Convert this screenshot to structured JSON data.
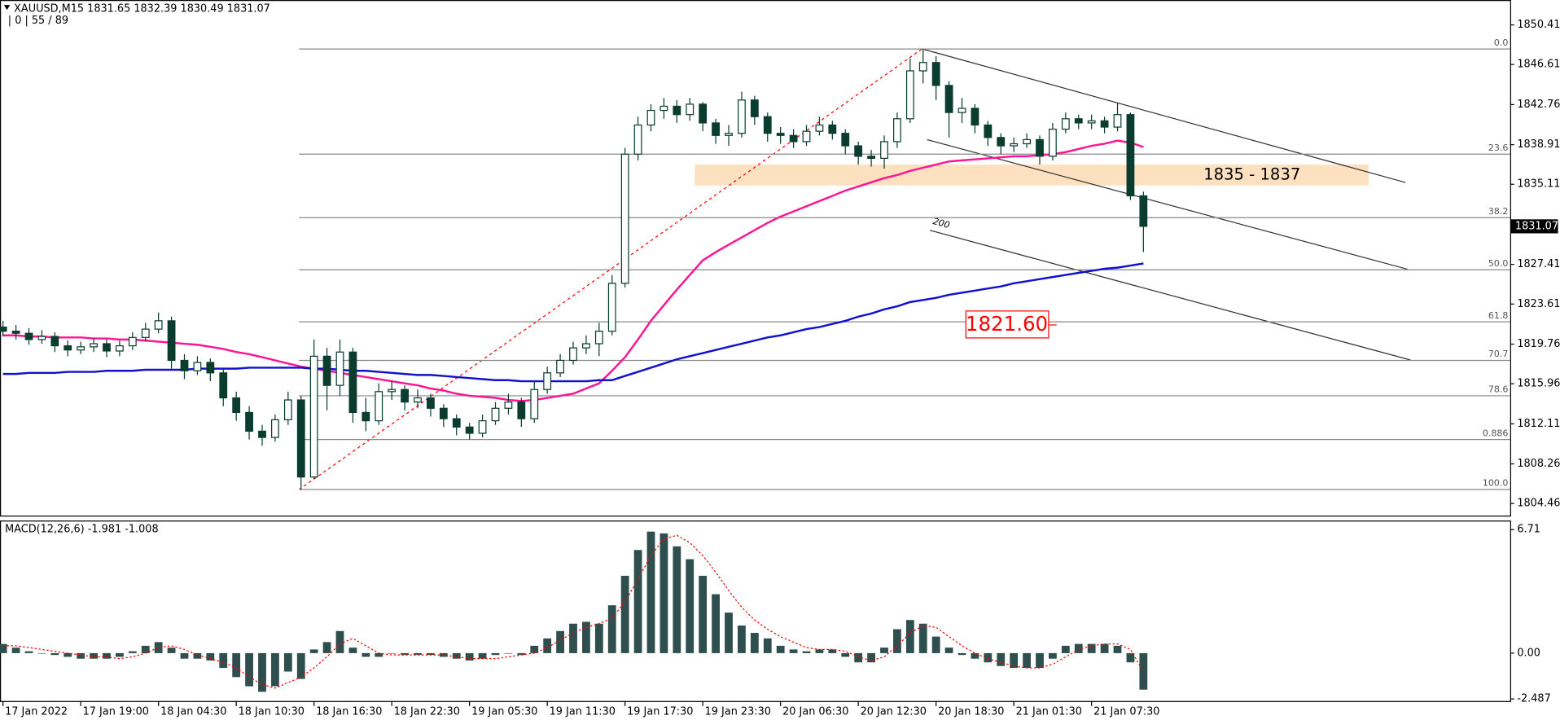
{
  "chart_data": [
    {
      "type": "candlestick",
      "title": "XAUUSD,M15 1831.65 1832.39 1830.49 1831.07",
      "subtitle": "| 0 | 55 / 89",
      "xlim": [
        -0.23,
        116.3
      ],
      "xticks": [
        {
          "value": 0,
          "label": "17 Jan 2022"
        },
        {
          "value": 6,
          "label": "17 Jan 19:00"
        },
        {
          "value": 12,
          "label": "18 Jan 04:30"
        },
        {
          "value": 18,
          "label": "18 Jan 10:30"
        },
        {
          "value": 24,
          "label": "18 Jan 16:30"
        },
        {
          "value": 30,
          "label": "18 Jan 22:30"
        },
        {
          "value": 36,
          "label": "19 Jan 05:30"
        },
        {
          "value": 42,
          "label": "19 Jan 11:30"
        },
        {
          "value": 48,
          "label": "19 Jan 17:30"
        },
        {
          "value": 54,
          "label": "19 Jan 23:30"
        },
        {
          "value": 60,
          "label": "20 Jan 06:30"
        },
        {
          "value": 66,
          "label": "20 Jan 12:30"
        },
        {
          "value": 72,
          "label": "20 Jan 18:30"
        },
        {
          "value": 78,
          "label": "21 Jan 01:30"
        },
        {
          "value": 84,
          "label": "21 Jan 07:30"
        }
      ],
      "ylim": [
        1803.3,
        1852.8
      ],
      "yticks": [
        1850.41,
        1846.61,
        1842.76,
        1838.91,
        1835.11,
        1827.41,
        1823.61,
        1819.76,
        1815.96,
        1812.11,
        1808.26,
        1804.46
      ],
      "last_price": 1831.07,
      "color": "#0b3d2e",
      "open": [
        1821.4,
        1821.0,
        1820.8,
        1820.2,
        1820.5,
        1819.6,
        1819.2,
        1819.5,
        1819.8,
        1819.1,
        1819.6,
        1820.4,
        1821.2,
        1822.0,
        1818.2,
        1817.2,
        1818.0,
        1817.0,
        1814.6,
        1813.2,
        1811.4,
        1810.8,
        1812.5,
        1814.4,
        1807.0,
        1818.6,
        1815.8,
        1819.0,
        1813.2,
        1812.4,
        1815.2,
        1815.4,
        1814.2,
        1814.6,
        1813.6,
        1812.6,
        1811.8,
        1811.2,
        1812.4,
        1813.6,
        1814.2,
        1812.6,
        1815.4,
        1817.0,
        1818.2,
        1819.4,
        1819.8,
        1821.0,
        1825.6,
        1838.0,
        1840.8,
        1842.2,
        1842.6,
        1841.8,
        1842.8,
        1841.0,
        1839.8,
        1840.0,
        1843.2,
        1841.6,
        1840.0,
        1839.8,
        1839.2,
        1840.2,
        1840.8,
        1840.0,
        1838.8,
        1837.8,
        1837.6,
        1839.2,
        1841.4,
        1846.0,
        1846.8,
        1844.6,
        1842.0,
        1842.4,
        1840.8,
        1839.6,
        1838.8,
        1839.0,
        1839.4,
        1837.8,
        1840.4,
        1841.4,
        1841.0,
        1841.2,
        1840.6,
        1841.8,
        1834.0
      ],
      "high": [
        1822.0,
        1821.6,
        1821.3,
        1821.1,
        1820.9,
        1820.1,
        1820.0,
        1820.3,
        1820.2,
        1820.1,
        1820.9,
        1821.8,
        1822.8,
        1822.4,
        1818.8,
        1818.6,
        1818.4,
        1817.4,
        1815.2,
        1813.8,
        1812.0,
        1813.0,
        1815.2,
        1814.8,
        1820.2,
        1819.4,
        1820.2,
        1819.4,
        1814.6,
        1816.0,
        1816.2,
        1815.8,
        1815.4,
        1815.0,
        1814.0,
        1813.0,
        1812.2,
        1813.0,
        1814.2,
        1815.0,
        1814.6,
        1816.2,
        1817.6,
        1818.8,
        1820.0,
        1820.6,
        1821.8,
        1826.4,
        1838.6,
        1841.6,
        1842.8,
        1843.4,
        1843.2,
        1843.4,
        1843.0,
        1841.4,
        1840.8,
        1844.0,
        1843.6,
        1842.0,
        1840.6,
        1840.4,
        1840.8,
        1841.6,
        1841.2,
        1840.4,
        1839.2,
        1838.4,
        1839.8,
        1842.0,
        1847.2,
        1848.1,
        1847.4,
        1845.0,
        1843.4,
        1842.8,
        1841.2,
        1840.0,
        1839.6,
        1840.0,
        1839.8,
        1841.0,
        1842.0,
        1841.8,
        1841.8,
        1841.6,
        1842.9,
        1842.0,
        1834.4
      ],
      "low": [
        1820.5,
        1820.2,
        1819.7,
        1819.8,
        1819.0,
        1818.6,
        1818.8,
        1819.0,
        1818.5,
        1818.6,
        1819.2,
        1820.0,
        1820.8,
        1817.4,
        1816.4,
        1816.8,
        1816.2,
        1813.8,
        1812.4,
        1810.6,
        1810.0,
        1810.4,
        1812.0,
        1805.8,
        1806.8,
        1813.4,
        1814.8,
        1812.2,
        1811.4,
        1812.0,
        1814.4,
        1813.4,
        1813.6,
        1812.8,
        1811.8,
        1811.0,
        1810.6,
        1810.8,
        1812.0,
        1813.0,
        1811.8,
        1812.2,
        1815.0,
        1816.6,
        1817.8,
        1818.8,
        1818.6,
        1820.6,
        1825.2,
        1837.4,
        1840.2,
        1841.4,
        1841.0,
        1841.2,
        1840.2,
        1839.0,
        1838.8,
        1839.6,
        1840.8,
        1839.2,
        1839.0,
        1838.6,
        1838.8,
        1839.8,
        1839.4,
        1838.0,
        1837.0,
        1836.8,
        1836.6,
        1838.6,
        1841.0,
        1844.8,
        1843.2,
        1839.6,
        1841.0,
        1840.0,
        1838.8,
        1838.0,
        1838.2,
        1838.6,
        1837.0,
        1837.4,
        1840.0,
        1840.4,
        1840.4,
        1840.0,
        1840.2,
        1833.6,
        1828.6
      ],
      "close": [
        1821.0,
        1820.8,
        1820.2,
        1820.5,
        1819.6,
        1819.2,
        1819.5,
        1819.8,
        1819.1,
        1819.6,
        1820.4,
        1821.2,
        1822.0,
        1818.2,
        1817.2,
        1818.0,
        1817.0,
        1814.6,
        1813.2,
        1811.4,
        1810.8,
        1812.5,
        1814.4,
        1807.0,
        1818.6,
        1815.8,
        1819.0,
        1813.2,
        1812.4,
        1815.2,
        1815.4,
        1814.2,
        1814.6,
        1813.6,
        1812.6,
        1811.8,
        1811.2,
        1812.4,
        1813.6,
        1814.2,
        1812.6,
        1815.4,
        1817.0,
        1818.2,
        1819.4,
        1819.8,
        1821.0,
        1825.6,
        1838.0,
        1840.8,
        1842.2,
        1842.6,
        1841.8,
        1842.8,
        1841.0,
        1839.8,
        1840.0,
        1843.2,
        1841.6,
        1840.0,
        1839.8,
        1839.2,
        1840.2,
        1840.8,
        1840.0,
        1838.8,
        1837.8,
        1837.6,
        1839.2,
        1841.4,
        1846.0,
        1846.8,
        1844.6,
        1842.0,
        1842.4,
        1840.8,
        1839.6,
        1838.8,
        1839.0,
        1839.4,
        1837.8,
        1840.4,
        1841.4,
        1841.0,
        1841.2,
        1840.6,
        1841.8,
        1834.0,
        1831.07
      ],
      "lines": [
        {
          "color": "#ff1493",
          "values": [
            1820.6,
            1820.6,
            1820.5,
            1820.5,
            1820.4,
            1820.4,
            1820.4,
            1820.3,
            1820.3,
            1820.2,
            1820.2,
            1820.1,
            1820.0,
            1819.9,
            1819.8,
            1819.7,
            1819.5,
            1819.3,
            1819.0,
            1818.8,
            1818.5,
            1818.2,
            1817.9,
            1817.6,
            1817.4,
            1817.2,
            1817.0,
            1816.8,
            1816.6,
            1816.4,
            1816.2,
            1816.0,
            1815.8,
            1815.5,
            1815.3,
            1815.0,
            1814.8,
            1814.7,
            1814.6,
            1814.4,
            1814.3,
            1814.4,
            1814.6,
            1814.8,
            1815.0,
            1815.5,
            1816.0,
            1817.2,
            1818.5,
            1820.2,
            1822.0,
            1823.5,
            1825.0,
            1826.4,
            1827.8,
            1828.6,
            1829.3,
            1830.0,
            1830.7,
            1831.4,
            1832.0,
            1832.5,
            1833.0,
            1833.5,
            1834.0,
            1834.5,
            1834.9,
            1835.3,
            1835.7,
            1836.0,
            1836.4,
            1836.7,
            1837.0,
            1837.3,
            1837.4,
            1837.5,
            1837.6,
            1837.7,
            1837.8,
            1837.8,
            1837.9,
            1838.0,
            1838.2,
            1838.5,
            1838.8,
            1839.0,
            1839.3,
            1839.1,
            1838.7
          ]
        },
        {
          "color": "#1010d0",
          "values": [
            1816.9,
            1816.9,
            1817.0,
            1817.0,
            1817.0,
            1817.1,
            1817.1,
            1817.1,
            1817.2,
            1817.2,
            1817.2,
            1817.3,
            1817.3,
            1817.3,
            1817.3,
            1817.4,
            1817.4,
            1817.4,
            1817.4,
            1817.5,
            1817.5,
            1817.5,
            1817.5,
            1817.5,
            1817.4,
            1817.4,
            1817.3,
            1817.2,
            1817.2,
            1817.1,
            1817.0,
            1816.9,
            1816.8,
            1816.8,
            1816.7,
            1816.6,
            1816.5,
            1816.4,
            1816.3,
            1816.3,
            1816.2,
            1816.2,
            1816.2,
            1816.2,
            1816.2,
            1816.2,
            1816.3,
            1816.3,
            1816.7,
            1817.1,
            1817.5,
            1817.9,
            1818.3,
            1818.6,
            1818.9,
            1819.2,
            1819.5,
            1819.8,
            1820.1,
            1820.4,
            1820.6,
            1820.9,
            1821.2,
            1821.4,
            1821.7,
            1822.0,
            1822.4,
            1822.7,
            1823.1,
            1823.4,
            1823.8,
            1824.0,
            1824.2,
            1824.5,
            1824.7,
            1824.9,
            1825.1,
            1825.3,
            1825.6,
            1825.8,
            1826.0,
            1826.2,
            1826.4,
            1826.6,
            1826.8,
            1827.0,
            1827.1,
            1827.3,
            1827.5
          ]
        }
      ],
      "fib_levels": [
        {
          "label": "0.0",
          "value": 1848.1
        },
        {
          "label": "23.6",
          "value": 1838.0
        },
        {
          "label": "38.2",
          "value": 1831.9
        },
        {
          "label": "50.0",
          "value": 1826.9
        },
        {
          "label": "61.8",
          "value": 1821.9
        },
        {
          "label": "70.7",
          "value": 1818.2
        },
        {
          "label": "78.6",
          "value": 1814.8
        },
        {
          "label": "0.886",
          "value": 1810.6
        },
        {
          "label": "100.0",
          "value": 1805.8
        }
      ],
      "zone": {
        "label": "1835 - 1837",
        "low": 1835,
        "high": 1837,
        "color": "#fde0bf"
      },
      "price_label": {
        "label": "1821.60",
        "value": 1821.6,
        "color": "#ff0000"
      },
      "channel_label": "200"
    },
    {
      "type": "bar",
      "title": "MACD(12,26,6) -1.981 -1.008",
      "xlim": [
        -0.23,
        116.3
      ],
      "ylim": [
        -2.6,
        7.2
      ],
      "yticks": [
        6.71,
        {
          "value": 0,
          "label": "0.00"
        },
        -2.487
      ],
      "series": [
        {
          "color": "#2f4f4f",
          "values": [
            0.5,
            0.3,
            0.1,
            0.0,
            -0.1,
            -0.2,
            -0.3,
            -0.3,
            -0.3,
            -0.2,
            0.1,
            0.4,
            0.6,
            0.3,
            -0.3,
            -0.3,
            -0.4,
            -0.8,
            -1.3,
            -1.8,
            -2.1,
            -1.8,
            -1.0,
            -1.4,
            0.2,
            0.6,
            1.2,
            0.3,
            -0.2,
            -0.2,
            0.0,
            -0.1,
            -0.1,
            -0.1,
            -0.2,
            -0.3,
            -0.4,
            -0.3,
            -0.1,
            0.0,
            -0.1,
            0.4,
            0.8,
            1.2,
            1.6,
            1.7,
            1.6,
            2.6,
            4.2,
            5.6,
            6.6,
            6.5,
            5.8,
            5.1,
            4.2,
            3.2,
            2.2,
            1.5,
            1.1,
            0.8,
            0.4,
            0.2,
            0.1,
            0.2,
            0.2,
            -0.2,
            -0.5,
            -0.5,
            0.3,
            1.3,
            1.8,
            1.6,
            0.9,
            0.3,
            -0.1,
            -0.3,
            -0.5,
            -0.7,
            -0.8,
            -0.8,
            -0.8,
            -0.3,
            0.4,
            0.5,
            0.5,
            0.5,
            0.4,
            -0.5,
            -1.981
          ]
        },
        {
          "color": "#ff0000",
          "type": "line",
          "values": [
            0.4,
            0.4,
            0.3,
            0.2,
            0.1,
            0.0,
            -0.1,
            -0.2,
            -0.2,
            -0.3,
            -0.2,
            0.0,
            0.3,
            0.4,
            0.2,
            -0.1,
            -0.3,
            -0.5,
            -0.8,
            -1.3,
            -1.7,
            -1.9,
            -1.6,
            -1.3,
            -0.8,
            -0.2,
            0.5,
            0.8,
            0.4,
            0.0,
            -0.1,
            -0.1,
            -0.1,
            -0.1,
            -0.1,
            -0.2,
            -0.3,
            -0.3,
            -0.3,
            -0.2,
            -0.1,
            0.0,
            0.3,
            0.7,
            1.1,
            1.4,
            1.6,
            1.9,
            2.8,
            4.0,
            5.3,
            6.2,
            6.4,
            6.0,
            5.3,
            4.4,
            3.4,
            2.5,
            1.8,
            1.3,
            0.9,
            0.6,
            0.3,
            0.2,
            0.2,
            0.1,
            -0.2,
            -0.4,
            -0.2,
            0.4,
            1.1,
            1.5,
            1.4,
            0.9,
            0.4,
            0.0,
            -0.3,
            -0.5,
            -0.7,
            -0.8,
            -0.8,
            -0.6,
            -0.2,
            0.2,
            0.4,
            0.5,
            0.5,
            0.2,
            -1.008
          ]
        }
      ]
    }
  ]
}
